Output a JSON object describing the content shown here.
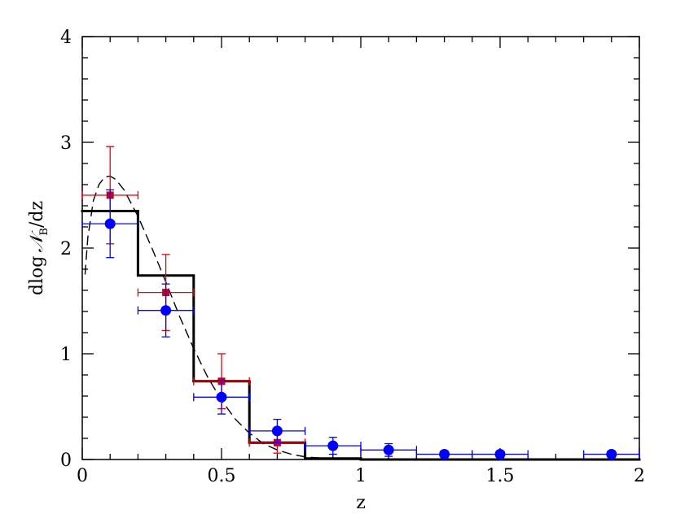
{
  "chart_data": {
    "type": "errorbar",
    "xlabel": "z",
    "ylabel": {
      "pre": "dlog",
      "symbol": "𝒩",
      "sub": "B",
      "post": "/dz"
    },
    "xlim": [
      0,
      2
    ],
    "ylim": [
      0,
      4
    ],
    "xticks": [
      0,
      0.5,
      1,
      1.5,
      2
    ],
    "yticks": [
      0,
      1,
      2,
      3,
      4
    ],
    "xminorticks": [
      0.1,
      0.2,
      0.3,
      0.4,
      0.6,
      0.7,
      0.8,
      0.9,
      1.1,
      1.2,
      1.3,
      1.4,
      1.6,
      1.7,
      1.8,
      1.9
    ],
    "yminorticks": [
      0.2,
      0.4,
      0.6,
      0.8,
      1.2,
      1.4,
      1.6,
      1.8,
      2.2,
      2.4,
      2.6,
      2.8,
      3.2,
      3.4,
      3.6,
      3.8
    ],
    "series": [
      {
        "kind": "step",
        "color": "#000000",
        "bins": [
          0,
          0.2,
          0.4,
          0.6,
          0.8,
          1.0,
          1.2,
          1.4,
          1.6,
          1.8,
          2.0
        ],
        "values": [
          2.35,
          1.74,
          0.74,
          0.16,
          0.01,
          0,
          0,
          0,
          0,
          0
        ]
      },
      {
        "kind": "dashed",
        "color": "#000000",
        "x": [
          0.01,
          0.02,
          0.04,
          0.06,
          0.08,
          0.1,
          0.12,
          0.15,
          0.2,
          0.25,
          0.3,
          0.35,
          0.4,
          0.45,
          0.5,
          0.55,
          0.6,
          0.65,
          0.7,
          0.75,
          0.8,
          0.9,
          1.0,
          1.5,
          2.0
        ],
        "values": [
          1.75,
          2.1,
          2.45,
          2.6,
          2.67,
          2.68,
          2.65,
          2.55,
          2.3,
          2.0,
          1.68,
          1.35,
          1.05,
          0.78,
          0.56,
          0.38,
          0.25,
          0.15,
          0.09,
          0.05,
          0.025,
          0.005,
          0.001,
          0,
          0
        ]
      },
      {
        "kind": "square",
        "color": "#e8000b",
        "marker": "#c0002a",
        "x": [
          0.1,
          0.3,
          0.5,
          0.7
        ],
        "values": [
          2.5,
          1.58,
          0.74,
          0.16
        ],
        "xerr": [
          0.1,
          0.1,
          0.1,
          0.1
        ],
        "yerr": [
          0.46,
          0.36,
          0.26,
          0.1
        ]
      },
      {
        "kind": "circle",
        "color": "#0000ff",
        "marker": "#0000ff",
        "x": [
          0.1,
          0.3,
          0.5,
          0.7,
          0.9,
          1.1,
          1.3,
          1.5,
          1.9
        ],
        "values": [
          2.23,
          1.41,
          0.59,
          0.27,
          0.13,
          0.09,
          0.05,
          0.05,
          0.05
        ],
        "xerr": [
          0.1,
          0.1,
          0.1,
          0.1,
          0.1,
          0.1,
          0.1,
          0.1,
          0.1
        ],
        "yerr": [
          0.32,
          0.25,
          0.16,
          0.11,
          0.08,
          0.06,
          0.03,
          0.03,
          0.03
        ]
      }
    ]
  }
}
